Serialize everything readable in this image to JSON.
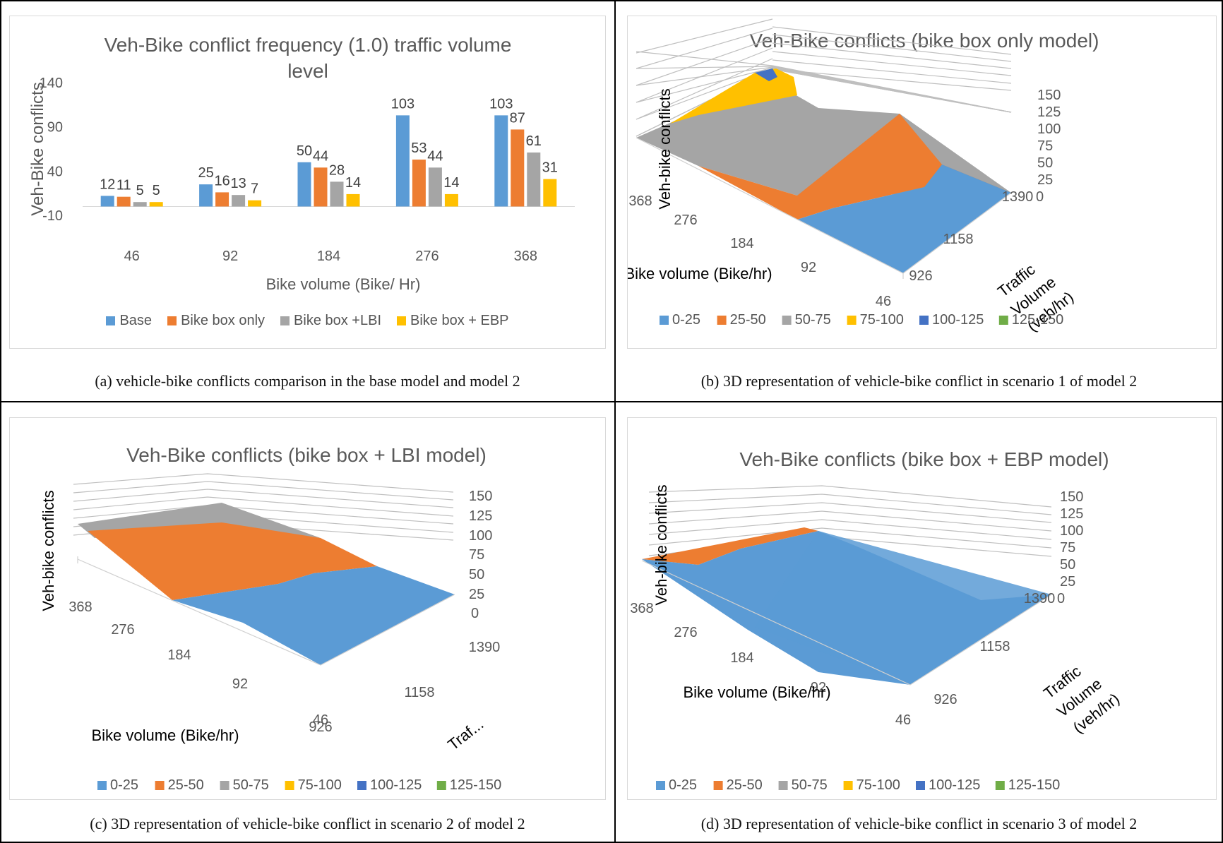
{
  "colors": {
    "base": "#5b9bd5",
    "bike_box_only": "#ed7d31",
    "bike_box_lbi": "#a5a5a5",
    "bike_box_ebp": "#ffc000",
    "band_0_25": "#5b9bd5",
    "band_25_50": "#ed7d31",
    "band_50_75": "#a5a5a5",
    "band_75_100": "#ffc000",
    "band_100_125": "#4472c4",
    "band_125_150": "#70ad47"
  },
  "panels": {
    "a": {
      "caption": "(a) vehicle-bike conflicts comparison in the base model and model 2",
      "chart_data": {
        "type": "bar",
        "title_line1": "Veh-Bike conflict frequency (1.0) traffic volume",
        "title_line2": "level",
        "xlabel": "Bike volume (Bike/ Hr)",
        "ylabel": "Veh-Bike conflicts",
        "ylim": [
          -10,
          140
        ],
        "yticks": [
          "140",
          "90",
          "40",
          "-10"
        ],
        "categories": [
          "46",
          "92",
          "184",
          "276",
          "368"
        ],
        "series": [
          {
            "name": "Base",
            "values": [
              12,
              25,
              50,
              103,
              103
            ],
            "labels": [
              "12",
              "25",
              "50",
              "103",
              "103"
            ]
          },
          {
            "name": "Bike box only",
            "values": [
              11,
              16,
              44,
              53,
              87
            ],
            "labels": [
              "11",
              "16",
              "44",
              "53",
              "87"
            ]
          },
          {
            "name": "Bike box +LBI",
            "values": [
              5,
              13,
              28,
              44,
              61
            ],
            "labels": [
              "5",
              "13",
              "28",
              "44",
              "61"
            ]
          },
          {
            "name": "Bike box + EBP",
            "values": [
              5,
              7,
              14,
              14,
              31
            ],
            "labels": [
              "5",
              "7",
              "14",
              "14",
              "31"
            ]
          }
        ],
        "legend_position": "bottom",
        "grid": false
      }
    },
    "b": {
      "caption": "(b) 3D representation of vehicle-bike conflict in scenario 1 of model 2",
      "chart_data": {
        "type": "surface",
        "title": "Veh-Bike conflicts  (bike box only model)",
        "zlabel": "Veh-bike conflicts",
        "xlabel": "Bike volume (Bike/hr)",
        "ylabel_lines": [
          "Traffic",
          "Volume",
          "(veh/hr)"
        ],
        "x_ticks": [
          "368",
          "276",
          "184",
          "92",
          "46"
        ],
        "y_ticks": [
          "1390",
          "1158",
          "926"
        ],
        "z_ticks": [
          "150",
          "125",
          "100",
          "75",
          "50",
          "25",
          "0"
        ],
        "legend": [
          "0-25",
          "25-50",
          "50-75",
          "75-100",
          "100-125",
          "125-150"
        ]
      }
    },
    "c": {
      "caption": "(c) 3D representation of vehicle-bike conflict in scenario 2 of model 2",
      "chart_data": {
        "type": "surface",
        "title": "Veh-Bike conflicts (bike box + LBI model)",
        "zlabel": "Veh-bike conflicts",
        "xlabel": "Bike volume (Bike/hr)",
        "ylabel": "Traf...",
        "x_ticks": [
          "368",
          "276",
          "184",
          "92",
          "46"
        ],
        "y_ticks": [
          "1390",
          "1158",
          "926"
        ],
        "z_ticks": [
          "150",
          "125",
          "100",
          "75",
          "50",
          "25",
          "0"
        ],
        "legend": [
          "0-25",
          "25-50",
          "50-75",
          "75-100",
          "100-125",
          "125-150"
        ]
      }
    },
    "d": {
      "caption": "(d) 3D representation of vehicle-bike conflict in scenario 3 of model 2",
      "chart_data": {
        "type": "surface",
        "title": "Veh-Bike conflicts (bike box + EBP model)",
        "zlabel": "Veh-bike conflicts",
        "xlabel": "Bike volume (Bike/hr)",
        "ylabel_lines": [
          "Traffic",
          "Volume",
          "(veh/hr)"
        ],
        "x_ticks": [
          "368",
          "276",
          "184",
          "92",
          "46"
        ],
        "y_ticks": [
          "1390",
          "1158",
          "926"
        ],
        "z_ticks": [
          "150",
          "125",
          "100",
          "75",
          "50",
          "25",
          "0"
        ],
        "legend": [
          "0-25",
          "25-50",
          "50-75",
          "75-100",
          "100-125",
          "125-150"
        ]
      }
    }
  }
}
